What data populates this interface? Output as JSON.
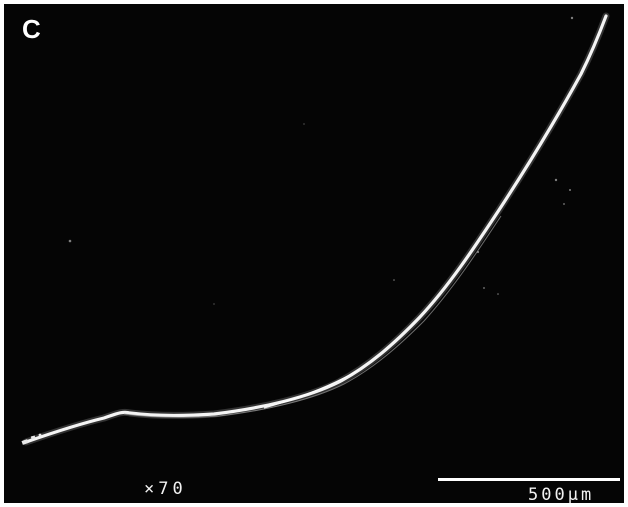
{
  "image": {
    "panel_label": "C",
    "magnification": "×70",
    "scale_bar": {
      "label": "500μm"
    },
    "colors": {
      "background": "#050505",
      "fiber": "#f4f4f4",
      "annotations": "#ffffff"
    }
  }
}
